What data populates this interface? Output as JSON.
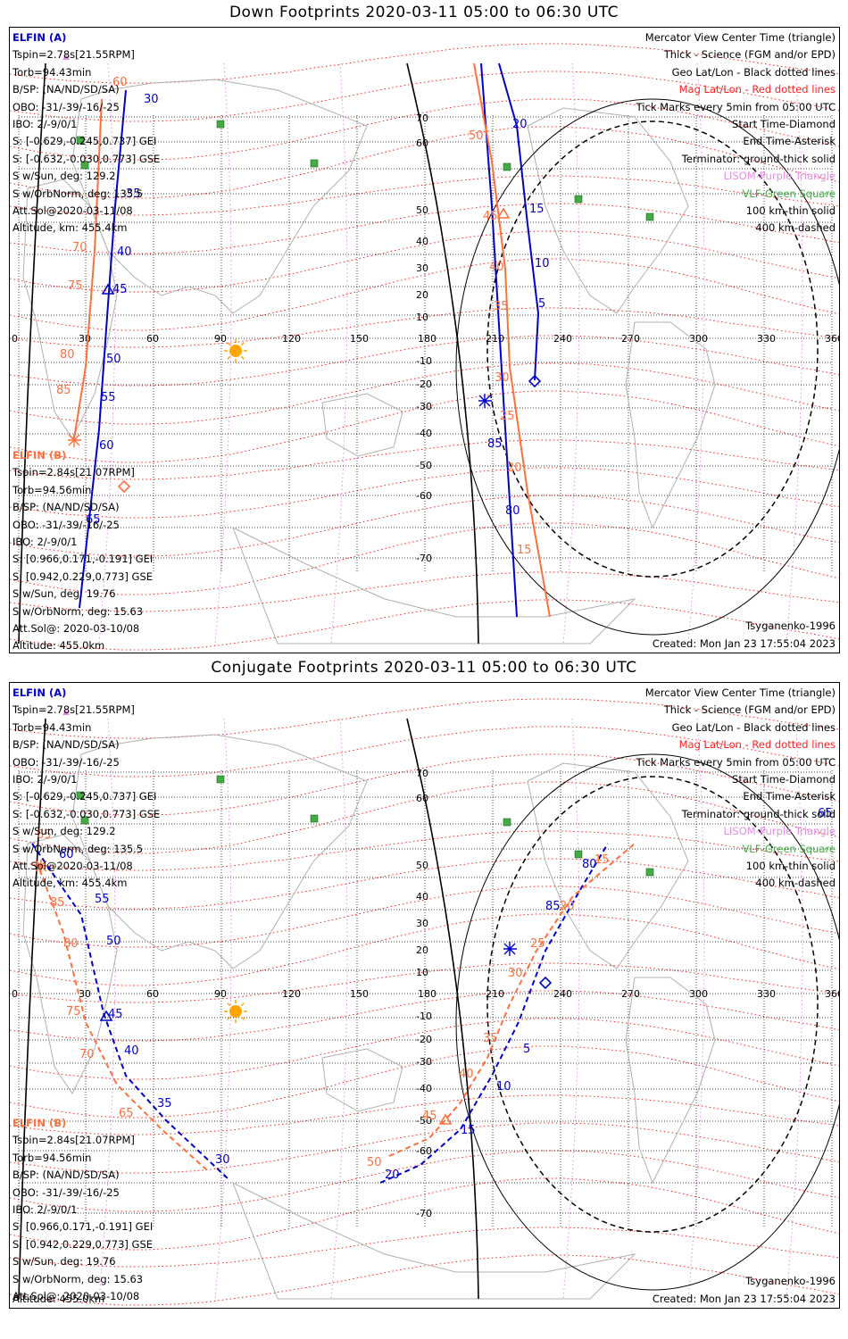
{
  "top": {
    "title": "Down Footprints 2020-03-11 05:00 to 06:30 UTC",
    "blue_ticks": [
      "20",
      "15",
      "10",
      "5",
      "30",
      "35",
      "40",
      "45",
      "50",
      "55",
      "60",
      "65",
      "80",
      "85"
    ],
    "orange_ticks": [
      "50",
      "45",
      "40",
      "35",
      "30",
      "25",
      "20",
      "15",
      "60",
      "70",
      "75",
      "80",
      "85"
    ]
  },
  "bottom_panel": {
    "title": "Conjugate Footprints 2020-03-11 05:00 to 06:30 UTC",
    "blue_ticks": [
      "60",
      "55",
      "50",
      "45",
      "40",
      "35",
      "30",
      "80",
      "85",
      "5",
      "10",
      "15",
      "20",
      "65"
    ],
    "orange_ticks": [
      "65",
      "80",
      "85",
      "75",
      "70",
      "65",
      "15",
      "20",
      "25",
      "30",
      "35",
      "40",
      "45",
      "50"
    ]
  },
  "elfin_a": {
    "name": "ELFIN (A)",
    "lines": [
      "Tspin=2.78s[21.55RPM]",
      "Torb=94.43min",
      "B/SP: (NA/ND/SD/SA)",
      "OBO: -31/-39/-16/-25",
      "IBO: 2/-9/0/1",
      "S: [-0.629,-0.245,0.737] GEI",
      "S: [-0.632,-0.030,0.773] GSE",
      "S w/Sun, deg: 129.2",
      "S w/OrbNorm, deg: 135.5",
      "Att.Sol@2020-03-11/08",
      "Altitude, km: 455.4km"
    ]
  },
  "elfin_b": {
    "name": "ELFIN (B)",
    "lines": [
      "Tspin=2.84s[21.07RPM]",
      "Torb=94.56min",
      "B/SP: (NA/ND/SD/SA)",
      "OBO: -31/-39/-16/-25",
      "IBO: 2/-9/0/1",
      "S: [0.966,0.171,-0.191] GEI",
      "S: [0.942,0.229,0.773] GSE",
      "S w/Sun, deg: 19.76",
      "S w/OrbNorm, deg: 15.63",
      "Att.Sol@: 2020-03-10/08",
      "Altitude: 455.0km"
    ]
  },
  "legend": {
    "view": "Mercator View Center Time (triangle)",
    "thick": "Thick - Science (FGM and/or EPD)",
    "geo": "Geo Lat/Lon - Black dotted lines",
    "mag": "Mag Lat/Lon - Red dotted lines",
    "ticks": "Tick Marks every 5min from 05:00 UTC",
    "start": "Start Time-Diamond",
    "end": "End Time-Asterisk",
    "terminator": "Terminator: ground-thick solid",
    "lisom": "LISOM-Purple Triangle",
    "vlf": "VLF-Green Square",
    "km100": "100 km-thin solid",
    "km400": "400 km-dashed"
  },
  "model": "Tsyganenko-1996",
  "created": "Created: Mon Jan 23 17:55:04 2023",
  "axis": {
    "lon_labels": [
      "0",
      "30",
      "60",
      "90",
      "120",
      "150",
      "180",
      "210",
      "240",
      "270",
      "300",
      "330",
      "360"
    ],
    "lat_labels": [
      "70",
      "60",
      "50",
      "40",
      "30",
      "20",
      "10",
      "0",
      "-10",
      "-20",
      "-30",
      "-40",
      "-50",
      "-60",
      "-70"
    ]
  },
  "colors": {
    "elfin_a": "#0000cc",
    "elfin_b": "#ff6f3c",
    "mag_grid": "#ff2020",
    "geo_grid": "#000000",
    "lisom": "#e48ce8",
    "vlf": "#44aa44",
    "sun": "#ffa500",
    "coast": "#b0b0b0"
  },
  "icons": {
    "sun": "sun-icon",
    "center_time": "triangle-icon",
    "start_time": "diamond-icon",
    "end_time": "asterisk-icon",
    "vlf_station": "green-square-icon",
    "lisom": "purple-triangle-icon"
  }
}
